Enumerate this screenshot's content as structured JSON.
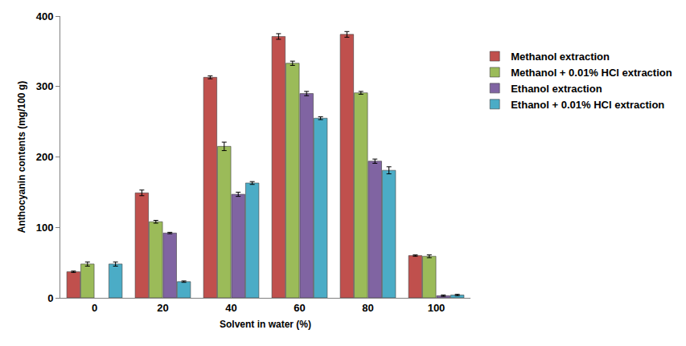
{
  "chart_data": {
    "type": "bar",
    "x_label": "Solvent in water (%)",
    "y_label": "Anthocyanin contents (mg/100 g)",
    "categories": [
      "0",
      "20",
      "40",
      "60",
      "80",
      "100"
    ],
    "series": [
      {
        "name": "Methanol extraction",
        "color": "#C0504D",
        "values": [
          37,
          149,
          313,
          371,
          374,
          60
        ],
        "errors": [
          1,
          4,
          2,
          4,
          4,
          1
        ]
      },
      {
        "name": "Methanol + 0.01% HCl extraction",
        "color": "#9BBB59",
        "values": [
          48,
          108,
          215,
          333,
          291,
          59
        ],
        "errors": [
          3,
          2,
          6,
          3,
          2,
          2
        ]
      },
      {
        "name": "Ethanol extraction",
        "color": "#8064A2",
        "values": [
          null,
          92,
          147,
          290,
          194,
          3
        ],
        "errors": [
          null,
          1,
          3,
          3,
          3,
          1
        ]
      },
      {
        "name": "Ethanol + 0.01% HCl extraction",
        "color": "#4BACC6",
        "values": [
          48,
          23,
          163,
          255,
          181,
          4
        ],
        "errors": [
          3,
          1,
          2,
          2,
          5,
          1
        ]
      }
    ],
    "ylim": [
      0,
      400
    ],
    "yticks": [
      0,
      100,
      200,
      300,
      400
    ],
    "grid": false,
    "legend": "right"
  }
}
